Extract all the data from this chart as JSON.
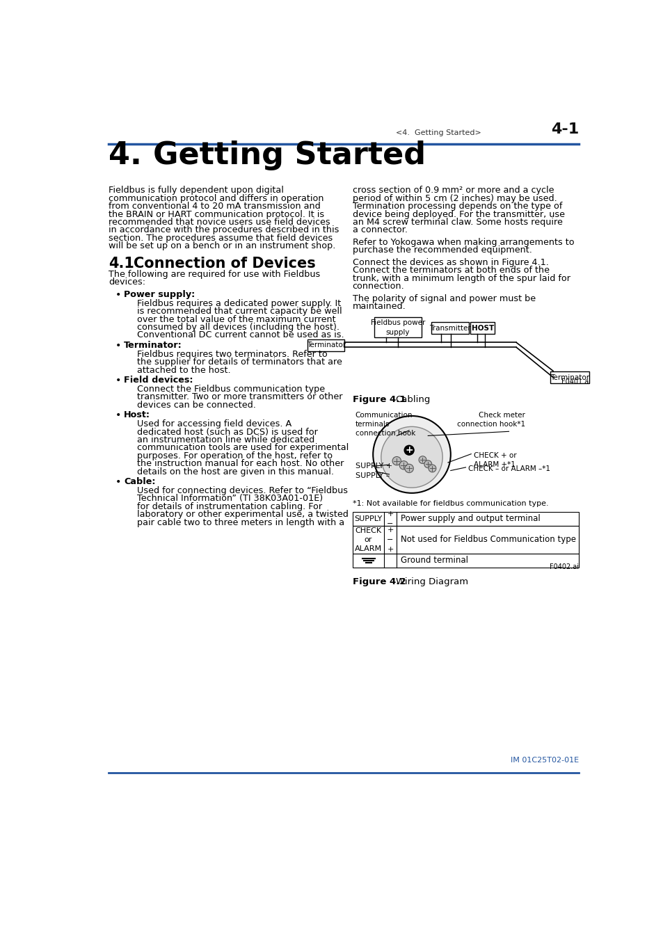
{
  "bg_color": "#ffffff",
  "header_line_color": "#2355a0",
  "header_text": "<4.  Getting Started>",
  "header_page": "4-1",
  "footer_line_color": "#2355a0",
  "footer_text": "IM 01C25T02-01E",
  "blue_color": "#2355a0",
  "dark_color": "#1a1a1a",
  "left_body_text": [
    "Fieldbus is fully dependent upon digital",
    "communication protocol and differs in operation",
    "from conventional 4 to 20 mA transmission and",
    "the BRAIN or HART communication protocol. It is",
    "recommended that novice users use field devices",
    "in accordance with the procedures described in this",
    "section. The procedures assume that field devices",
    "will be set up on a bench or in an instrument shop."
  ],
  "section_intro": [
    "The following are required for use with Fieldbus",
    "devices:"
  ],
  "bullet_items": [
    {
      "title": "Power supply:",
      "body": [
        "Fieldbus requires a dedicated power supply. It",
        "is recommended that current capacity be well",
        "over the total value of the maximum current",
        "consumed by all devices (including the host).",
        "Conventional DC current cannot be used as is."
      ]
    },
    {
      "title": "Terminator:",
      "body": [
        "Fieldbus requires two terminators. Refer to",
        "the supplier for details of terminators that are",
        "attached to the host."
      ]
    },
    {
      "title": "Field devices:",
      "body": [
        "Connect the Fieldbus communication type",
        "transmitter. Two or more transmitters or other",
        "devices can be connected."
      ]
    },
    {
      "title": "Host:",
      "body": [
        "Used for accessing field devices. A",
        "dedicated host (such as DCS) is used for",
        "an instrumentation line while dedicated",
        "communication tools are used for experimental",
        "purposes. For operation of the host, refer to",
        "the instruction manual for each host. No other",
        "details on the host are given in this manual."
      ]
    },
    {
      "title": "Cable:",
      "body": [
        "Used for connecting devices. Refer to “Fieldbus",
        "Technical Information” (TI 38K03A01-01E)",
        "for details of instrumentation cabling. For",
        "laboratory or other experimental use, a twisted",
        "pair cable two to three meters in length with a"
      ]
    }
  ],
  "right_body_text": [
    "cross section of 0.9 mm² or more and a cycle",
    "period of within 5 cm (2 inches) may be used.",
    "Termination processing depends on the type of",
    "device being deployed. For the transmitter, use",
    "an M4 screw terminal claw. Some hosts require",
    "a connector."
  ],
  "right_para2": [
    "Refer to Yokogawa when making arrangements to",
    "purchase the recommended equipment."
  ],
  "right_para3": [
    "Connect the devices as shown in Figure 4.1.",
    "Connect the terminators at both ends of the",
    "trunk, with a minimum length of the spur laid for",
    "connection."
  ],
  "right_para4": [
    "The polarity of signal and power must be",
    "maintained."
  ],
  "fig2_note_text": "*1: Not available for fieldbus communication type."
}
